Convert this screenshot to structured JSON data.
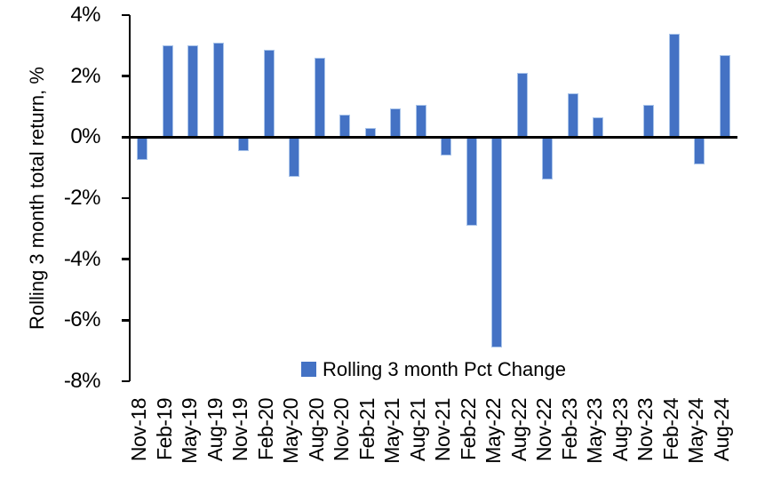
{
  "chart_data": {
    "type": "bar",
    "title": "",
    "ylabel": "Rolling 3 month total return, %",
    "xlabel": "",
    "ylim": [
      -8,
      4
    ],
    "ytick_step": 2,
    "ytick_labels": [
      "4%",
      "2%",
      "0%",
      "-2%",
      "-4%",
      "-6%",
      "-8%"
    ],
    "grid": false,
    "legend_label": "Rolling 3 month Pct Change",
    "legend_position": "bottom-center-inside-plot",
    "bar_color": "#4472C4",
    "bar_edge_color": "#A9C4EA",
    "axis_color": "#000000",
    "categories": [
      "Nov-18",
      "Feb-19",
      "May-19",
      "Aug-19",
      "Nov-19",
      "Feb-20",
      "May-20",
      "Aug-20",
      "Nov-20",
      "Feb-21",
      "May-21",
      "Aug-21",
      "Nov-21",
      "Feb-22",
      "May-22",
      "Aug-22",
      "Nov-22",
      "Feb-23",
      "May-23",
      "Aug-23",
      "Nov-23",
      "Feb-24",
      "May-24",
      "Aug-24"
    ],
    "values": [
      -0.75,
      3.0,
      3.0,
      3.1,
      -0.45,
      2.85,
      -1.3,
      2.6,
      0.75,
      0.3,
      0.95,
      1.05,
      -0.6,
      -2.9,
      -6.9,
      2.1,
      -1.4,
      1.45,
      0.65,
      0.0,
      1.05,
      3.4,
      -0.9,
      2.7
    ]
  }
}
